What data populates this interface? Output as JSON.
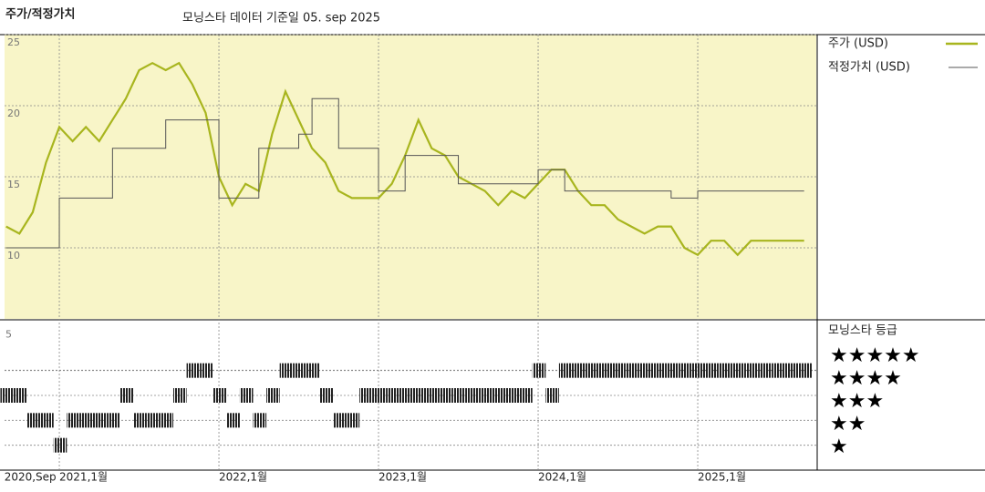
{
  "chart_data": {
    "type": "line",
    "title": "주가/적정가치",
    "subtitle": "모닝스타 데이터 기준일 05. sep 2025",
    "x": [
      "2020-09",
      "2020-10",
      "2020-11",
      "2020-12",
      "2021-01",
      "2021-02",
      "2021-03",
      "2021-04",
      "2021-05",
      "2021-06",
      "2021-07",
      "2021-08",
      "2021-09",
      "2021-10",
      "2021-11",
      "2021-12",
      "2022-01",
      "2022-02",
      "2022-03",
      "2022-04",
      "2022-05",
      "2022-06",
      "2022-07",
      "2022-08",
      "2022-09",
      "2022-10",
      "2022-11",
      "2022-12",
      "2023-01",
      "2023-02",
      "2023-03",
      "2023-04",
      "2023-05",
      "2023-06",
      "2023-07",
      "2023-08",
      "2023-09",
      "2023-10",
      "2023-11",
      "2023-12",
      "2024-01",
      "2024-02",
      "2024-03",
      "2024-04",
      "2024-05",
      "2024-06",
      "2024-07",
      "2024-08",
      "2024-09",
      "2024-10",
      "2024-11",
      "2024-12",
      "2025-01",
      "2025-02",
      "2025-03",
      "2025-04",
      "2025-05",
      "2025-06",
      "2025-07",
      "2025-08",
      "2025-09"
    ],
    "series": [
      {
        "name": "주가 (USD)",
        "color": "#a8b51e",
        "values": [
          11.5,
          11,
          12.5,
          16,
          18.5,
          17.5,
          18.5,
          17.5,
          19,
          20.5,
          22.5,
          23,
          22.5,
          23,
          21.5,
          19.5,
          15,
          13,
          14.5,
          14,
          18,
          21,
          19,
          17,
          16,
          14,
          13.5,
          13.5,
          13.5,
          14.5,
          16.5,
          19,
          17,
          16.5,
          15,
          14.5,
          14,
          13,
          14,
          13.5,
          14.5,
          15.5,
          15.5,
          14,
          13,
          13,
          12,
          11.5,
          11,
          11.5,
          11.5,
          10,
          9.5,
          10.5,
          10.5,
          9.5,
          10.5,
          10.5,
          10.5,
          10.5,
          10.5
        ]
      },
      {
        "name": "적정가치 (USD)",
        "color": "#555555",
        "values": [
          10,
          10,
          10,
          10,
          13.5,
          13.5,
          13.5,
          13.5,
          17,
          17,
          17,
          17,
          19,
          19,
          19,
          19,
          13.5,
          13.5,
          13.5,
          17,
          17,
          17,
          18,
          20.5,
          20.5,
          17,
          17,
          17,
          14,
          14,
          16.5,
          16.5,
          16.5,
          16.5,
          14.5,
          14.5,
          14.5,
          14.5,
          14.5,
          14.5,
          15.5,
          15.5,
          14,
          14,
          14,
          14,
          14,
          14,
          14,
          14,
          13.5,
          13.5,
          14,
          14,
          14,
          14,
          14,
          14,
          14,
          14,
          14
        ]
      }
    ],
    "ratings_title": "모닝스타 등급",
    "ratings": [
      3,
      3,
      2,
      2,
      1,
      2,
      2,
      2,
      2,
      3,
      2,
      2,
      2,
      3,
      4,
      4,
      3,
      2,
      3,
      2,
      3,
      4,
      4,
      4,
      3,
      2,
      2,
      3,
      3,
      3,
      3,
      3,
      3,
      3,
      3,
      3,
      3,
      3,
      3,
      3,
      4,
      3,
      4,
      4,
      4,
      4,
      4,
      4,
      4,
      4,
      4,
      4,
      4,
      4,
      4,
      4,
      4,
      4,
      4,
      4,
      4
    ],
    "rating_ylim": [
      0,
      6
    ],
    "rating_yticks": [
      5
    ],
    "rating_legend": [
      "★★★★★",
      "★★★★",
      "★★★",
      "★★",
      "★"
    ],
    "xlim": [
      "2020-09",
      "2025-09"
    ],
    "xticks": [
      {
        "value": "2020-09",
        "label": "2020,Sep"
      },
      {
        "value": "2021-01",
        "label": "2021,1월"
      },
      {
        "value": "2022-01",
        "label": "2022,1월"
      },
      {
        "value": "2023-01",
        "label": "2023,1월"
      },
      {
        "value": "2024-01",
        "label": "2024,1월"
      },
      {
        "value": "2025-01",
        "label": "2025,1월"
      }
    ],
    "ylim": [
      5,
      25
    ],
    "yticks": [
      10,
      15,
      20,
      25
    ],
    "grid": true,
    "background": "#f8f5c8"
  }
}
